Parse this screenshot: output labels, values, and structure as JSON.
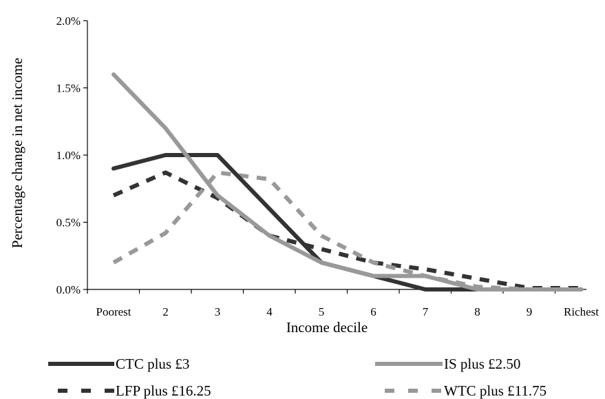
{
  "chart_data": {
    "type": "line",
    "xlabel": "Income decile",
    "ylabel": "Percentage change in net income",
    "categories": [
      "Poorest",
      "2",
      "3",
      "4",
      "5",
      "6",
      "7",
      "8",
      "9",
      "Richest"
    ],
    "y_ticks": [
      "0.0%",
      "0.5%",
      "1.0%",
      "1.5%",
      "2.0%"
    ],
    "ylim": [
      0,
      2.0
    ],
    "grid": false,
    "legend_position": "bottom",
    "series": [
      {
        "name": "CTC plus £3",
        "values": [
          0.9,
          1.0,
          1.0,
          0.6,
          0.2,
          0.1,
          0.0,
          0.0,
          0.0,
          0.0
        ],
        "color": "#333333",
        "style": "solid"
      },
      {
        "name": "IS plus £2.50",
        "values": [
          1.6,
          1.2,
          0.7,
          0.4,
          0.2,
          0.1,
          0.1,
          0.0,
          0.0,
          0.0
        ],
        "color": "#999999",
        "style": "solid"
      },
      {
        "name": "LFP plus £16.25",
        "values": [
          0.7,
          0.87,
          0.68,
          0.4,
          0.3,
          0.2,
          0.15,
          0.08,
          0.01,
          0.01
        ],
        "color": "#333333",
        "style": "dashed"
      },
      {
        "name": "WTC plus £11.75",
        "values": [
          0.2,
          0.42,
          0.87,
          0.82,
          0.4,
          0.2,
          0.1,
          0.02,
          0.0,
          0.0
        ],
        "color": "#999999",
        "style": "dashed"
      }
    ]
  }
}
